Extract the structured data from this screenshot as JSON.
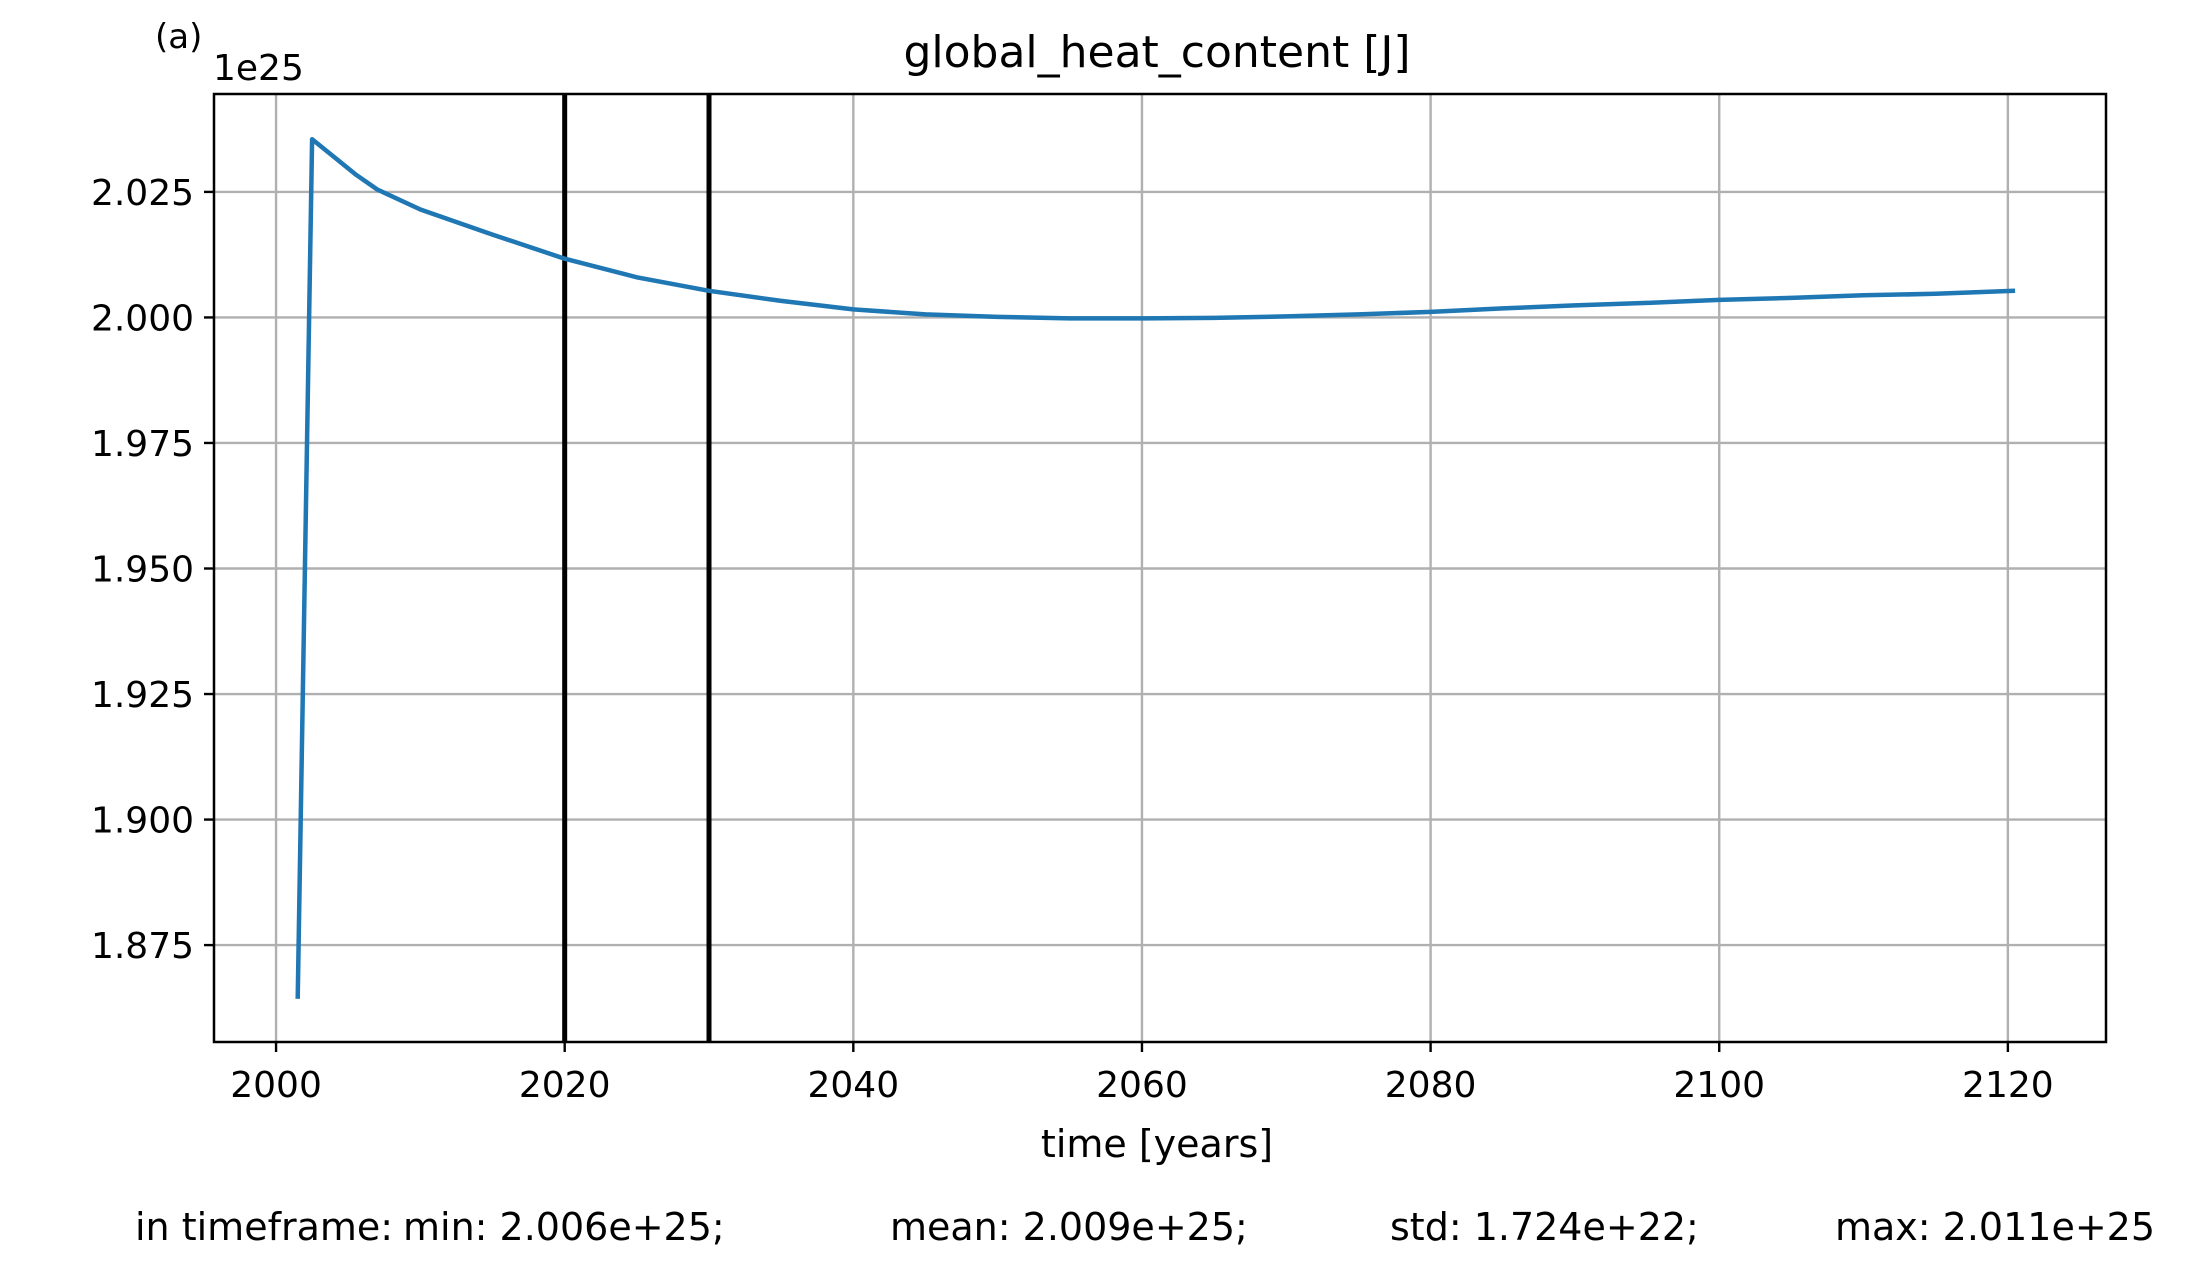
{
  "chart_data": {
    "type": "line",
    "title": "global_heat_content [J]",
    "panel_label": "(a)",
    "xlabel": "time [years]",
    "ylabel": "",
    "y_offset_label": "1e25",
    "y_multiplier": 1e+25,
    "xlim": [
      1995.7,
      2126.8
    ],
    "ylim": [
      1.8557,
      2.0445
    ],
    "x_ticks": [
      2000,
      2020,
      2040,
      2060,
      2080,
      2100,
      2120
    ],
    "y_ticks": [
      1.875,
      1.9,
      1.925,
      1.95,
      1.975,
      2.0,
      2.025
    ],
    "y_tick_labels": [
      "1.875",
      "1.900",
      "1.925",
      "1.950",
      "1.975",
      "2.000",
      "2.025"
    ],
    "grid": true,
    "vertical_lines": [
      2020,
      2030
    ],
    "series": [
      {
        "color": "#1f77b4",
        "x": [
          2001.5,
          2002.5,
          2004,
          2005.5,
          2007,
          2010,
          2015,
          2020,
          2025,
          2030,
          2035,
          2040,
          2045,
          2050,
          2055,
          2060,
          2065,
          2070,
          2075,
          2080,
          2085,
          2090,
          2095,
          2100,
          2105,
          2110,
          2115,
          2120.5
        ],
        "y": [
          1.8643,
          2.0355,
          2.032,
          2.0285,
          2.0255,
          2.0215,
          2.0165,
          2.0117,
          2.008,
          2.0053,
          2.0033,
          2.0016,
          2.0006,
          2.0001,
          1.9998,
          1.9998,
          1.9999,
          2.0002,
          2.0006,
          2.0011,
          2.0018,
          2.0024,
          2.0029,
          2.0035,
          2.0039,
          2.0044,
          2.0047,
          2.0053
        ]
      }
    ]
  },
  "stats": {
    "prefix": "in timeframe: ",
    "min": "min: 2.006e+25;",
    "mean": "mean: 2.009e+25;",
    "std": "std: 1.724e+22;",
    "max": "max: 2.011e+25"
  }
}
